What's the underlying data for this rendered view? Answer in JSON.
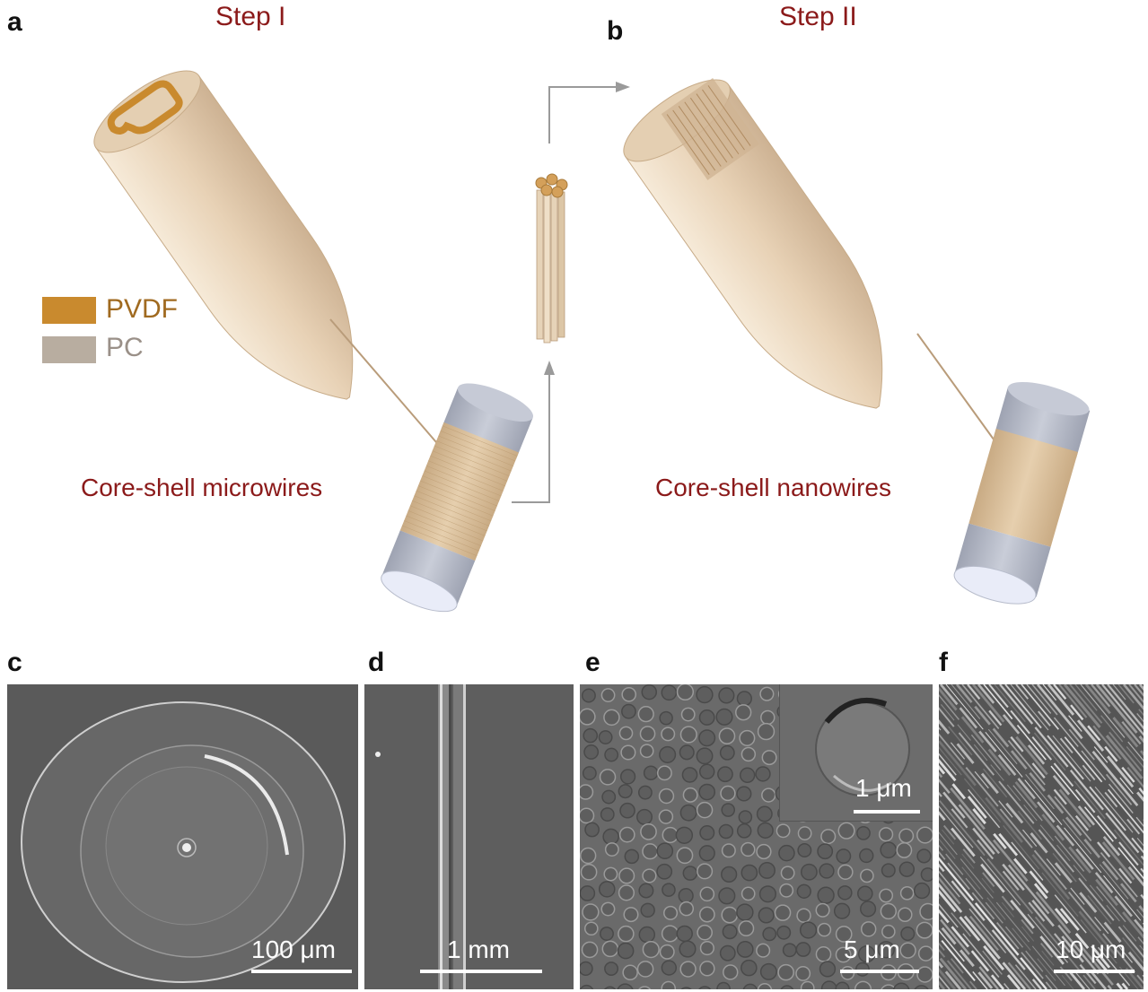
{
  "panels": {
    "a": {
      "letter": "a",
      "title": "Step I",
      "caption": "Core-shell microwires"
    },
    "b": {
      "letter": "b",
      "title": "Step II",
      "caption": "Core-shell nanowires"
    },
    "c": {
      "letter": "c",
      "scale": "100 μm"
    },
    "d": {
      "letter": "d",
      "scale": "1 mm"
    },
    "e": {
      "letter": "e",
      "scale": "5 μm",
      "inset_scale": "1 μm"
    },
    "f": {
      "letter": "f",
      "scale": "10 μm"
    }
  },
  "legend": [
    {
      "label": "PVDF",
      "color": "#c98a2e",
      "text_color": "#a06a20"
    },
    {
      "label": "PC",
      "color": "#b8ada0",
      "text_color": "#9a9088"
    }
  ],
  "colors": {
    "title": "#8b1a1a",
    "preform": "#e8d2b6",
    "spool": "#ddc4a2",
    "cap": "#c4c8d4",
    "arrow": "#9a9a9a"
  }
}
